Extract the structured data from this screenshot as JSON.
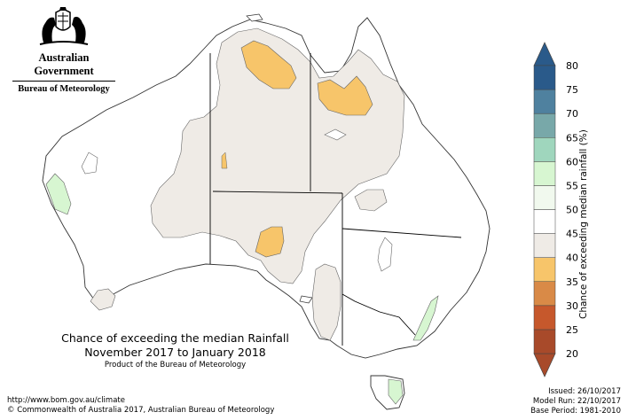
{
  "header": {
    "org_line1": "Australian Government",
    "org_line2": "Bureau of Meteorology"
  },
  "title": {
    "line1": "Chance of exceeding the median Rainfall",
    "line2": "November 2017 to January 2018",
    "line3": "Product of the Bureau of Meteorology"
  },
  "footer": {
    "url": "http://www.bom.gov.au/climate",
    "copyright": "© Commonwealth of Australia 2017, Australian Bureau of Meteorology",
    "issued": "Issued: 26/10/2017",
    "model_run": "Model Run: 22/10/2017",
    "base_period": "Base Period: 1981-2010"
  },
  "legend": {
    "title": "Chance of exceeding median rainfall (%)",
    "ticks": [
      "20",
      "25",
      "30",
      "35",
      "40",
      "45",
      "50",
      "55",
      "60",
      "65",
      "70",
      "75",
      "80"
    ],
    "colors": [
      "#a84a2a",
      "#c6582c",
      "#d98a47",
      "#f7c56a",
      "#efebe6",
      "#ffffff",
      "#f1f9ee",
      "#d7f6d1",
      "#9fd6bd",
      "#78a8a9",
      "#4f819f",
      "#2a5a8a"
    ]
  },
  "map_colors": {
    "near_median": "#efebe6",
    "below_35_40": "#f7c56a",
    "above_55_60": "#d7f6d1"
  }
}
